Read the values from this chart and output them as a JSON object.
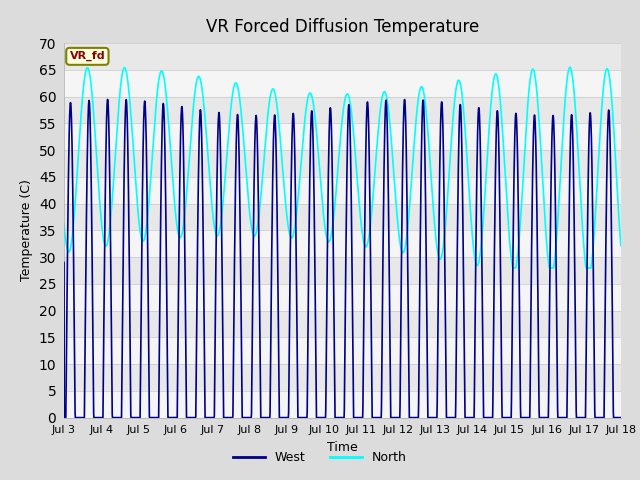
{
  "title": "VR Forced Diffusion Temperature",
  "xlabel": "Time",
  "ylabel": "Temperature (C)",
  "ylim": [
    0,
    70
  ],
  "yticks": [
    0,
    5,
    10,
    15,
    20,
    25,
    30,
    35,
    40,
    45,
    50,
    55,
    60,
    65,
    70
  ],
  "x_tick_days": [
    3,
    4,
    5,
    6,
    7,
    8,
    9,
    10,
    11,
    12,
    13,
    14,
    15,
    16,
    17,
    18
  ],
  "x_tick_labels": [
    "Jul 3",
    "Jul 4",
    "Jul 5",
    "Jul 6",
    "Jul 7",
    "Jul 8",
    "Jul 9",
    "Jul 10",
    "Jul 11",
    "Jul 12",
    "Jul 13",
    "Jul 14",
    "Jul 15",
    "Jul 16",
    "Jul 17",
    "Jul 18"
  ],
  "west_color": "#00008B",
  "north_color": "#00FFFF",
  "west_linewidth": 1.2,
  "north_linewidth": 1.2,
  "bg_color": "#DCDCDC",
  "plot_bg_color": "#F0F0F0",
  "grid_color": "#C8C8C8",
  "annotation_text": "VR_fd",
  "title_fontsize": 12,
  "label_fontsize": 9,
  "tick_fontsize": 8
}
